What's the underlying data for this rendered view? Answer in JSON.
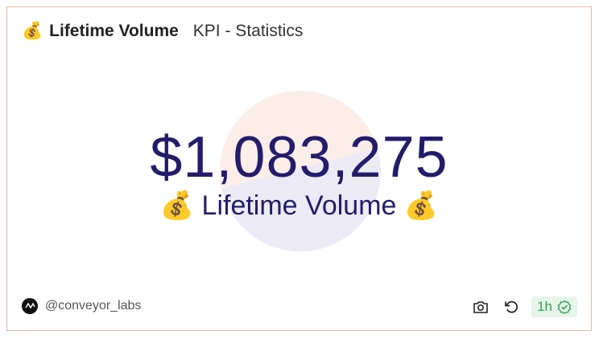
{
  "header": {
    "icon": "💰",
    "title": "Lifetime Volume",
    "subtitle": "KPI - Statistics"
  },
  "kpi": {
    "value": "$1,083,275",
    "label": "💰 Lifetime Volume 💰"
  },
  "footer": {
    "author": "@conveyor_labs",
    "freshness": "1h"
  }
}
